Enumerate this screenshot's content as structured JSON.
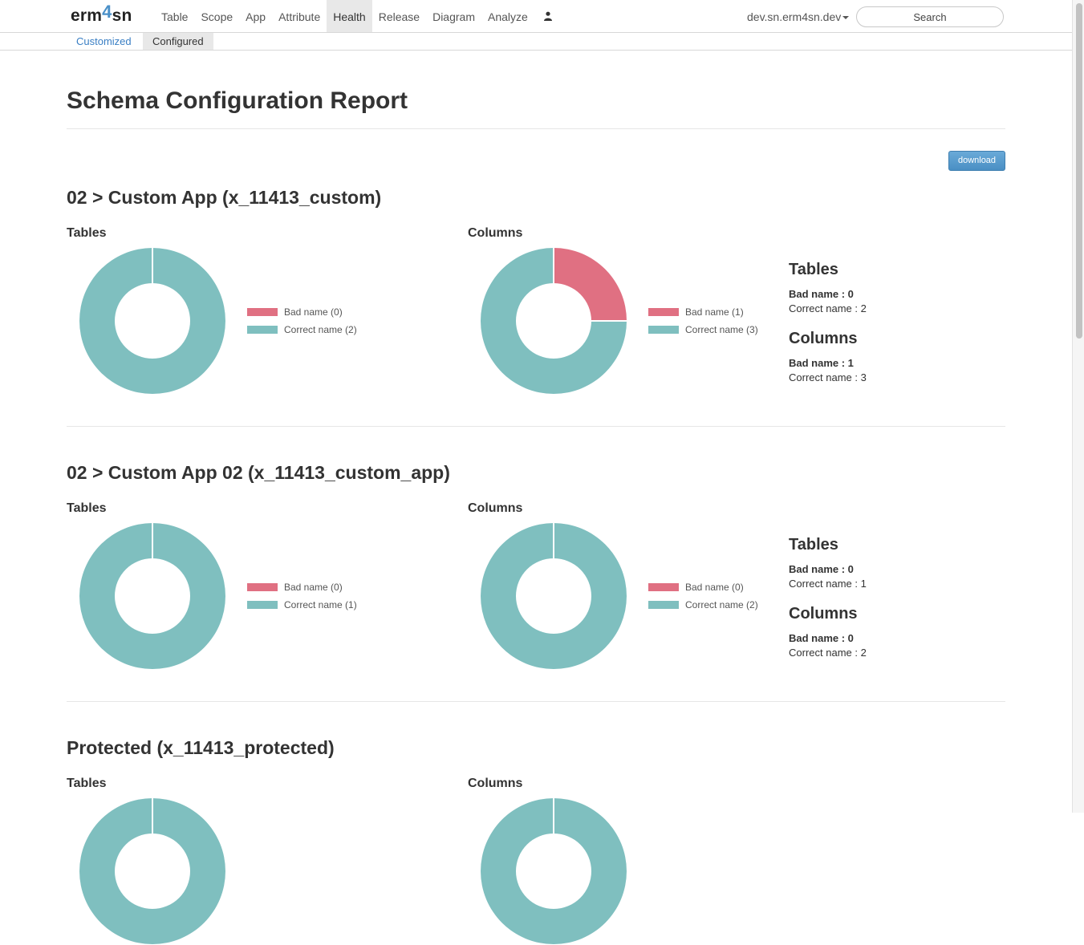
{
  "brand": {
    "prefix": "erm",
    "accent": "4",
    "suffix": "sn"
  },
  "nav": {
    "items": [
      {
        "label": "Table",
        "active": false
      },
      {
        "label": "Scope",
        "active": false
      },
      {
        "label": "App",
        "active": false
      },
      {
        "label": "Attribute",
        "active": false
      },
      {
        "label": "Health",
        "active": true
      },
      {
        "label": "Release",
        "active": false
      },
      {
        "label": "Diagram",
        "active": false
      },
      {
        "label": "Analyze",
        "active": false
      }
    ],
    "user_icon": "user-icon",
    "host": "dev.sn.erm4sn.dev",
    "search_placeholder": "Search"
  },
  "subnav": {
    "tabs": [
      {
        "label": "Customized",
        "active": false
      },
      {
        "label": "Configured",
        "active": true
      }
    ]
  },
  "page_title": "Schema Configuration Report",
  "download_label": "download",
  "colors": {
    "bad": "#e07082",
    "correct": "#7fbfbf"
  },
  "sections": [
    {
      "title": "02 > Custom App (x_11413_custom)",
      "tables": {
        "label": "Tables",
        "bad": 0,
        "correct": 2,
        "legend_bad": "Bad name (0)",
        "legend_correct": "Correct name (2)"
      },
      "columns": {
        "label": "Columns",
        "bad": 1,
        "correct": 3,
        "legend_bad": "Bad name (1)",
        "legend_correct": "Correct name (3)"
      },
      "summary": {
        "tables_heading": "Tables",
        "tables_bad": "Bad name : 0",
        "tables_correct": "Correct name : 2",
        "columns_heading": "Columns",
        "columns_bad": "Bad name : 1",
        "columns_correct": "Correct name : 3"
      }
    },
    {
      "title": "02 > Custom App 02 (x_11413_custom_app)",
      "tables": {
        "label": "Tables",
        "bad": 0,
        "correct": 1,
        "legend_bad": "Bad name (0)",
        "legend_correct": "Correct name (1)"
      },
      "columns": {
        "label": "Columns",
        "bad": 0,
        "correct": 2,
        "legend_bad": "Bad name (0)",
        "legend_correct": "Correct name (2)"
      },
      "summary": {
        "tables_heading": "Tables",
        "tables_bad": "Bad name : 0",
        "tables_correct": "Correct name : 1",
        "columns_heading": "Columns",
        "columns_bad": "Bad name : 0",
        "columns_correct": "Correct name : 2"
      }
    },
    {
      "title": "Protected (x_11413_protected)",
      "tables": {
        "label": "Tables"
      },
      "columns": {
        "label": "Columns"
      }
    }
  ]
}
